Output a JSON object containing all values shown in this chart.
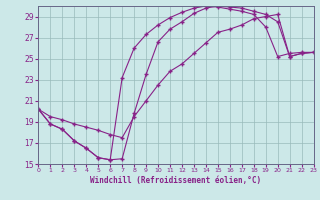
{
  "xlabel": "Windchill (Refroidissement éolien,°C)",
  "bg_color": "#cce8e8",
  "grid_color": "#99bbbb",
  "line_color": "#882288",
  "xlim_min": 0,
  "xlim_max": 23,
  "ylim_min": 15,
  "ylim_max": 30,
  "yticks": [
    15,
    17,
    19,
    21,
    23,
    25,
    27,
    29
  ],
  "xticks": [
    0,
    1,
    2,
    3,
    4,
    5,
    6,
    7,
    8,
    9,
    10,
    11,
    12,
    13,
    14,
    15,
    16,
    17,
    18,
    19,
    20,
    21,
    22,
    23
  ],
  "curve1_x": [
    0,
    1,
    2,
    3,
    4,
    5,
    6,
    7,
    8,
    9,
    10,
    11,
    12,
    13,
    14,
    15,
    16,
    17,
    18,
    19,
    20,
    21,
    22,
    23
  ],
  "curve1_y": [
    20.2,
    18.8,
    18.3,
    17.2,
    16.5,
    15.6,
    15.4,
    15.5,
    19.8,
    23.5,
    26.6,
    27.8,
    28.5,
    29.3,
    29.8,
    30.0,
    29.9,
    29.8,
    29.5,
    29.2,
    28.5,
    25.2,
    25.5,
    25.6
  ],
  "curve2_x": [
    0,
    1,
    2,
    3,
    4,
    5,
    6,
    7,
    8,
    9,
    10,
    11,
    12,
    13,
    14,
    15,
    16,
    17,
    18,
    19,
    20,
    21,
    22,
    23
  ],
  "curve2_y": [
    20.2,
    18.8,
    18.3,
    17.2,
    16.5,
    15.6,
    15.4,
    23.2,
    26.0,
    27.3,
    28.2,
    28.9,
    29.4,
    29.8,
    30.0,
    29.9,
    29.7,
    29.5,
    29.2,
    28.0,
    25.2,
    25.5,
    25.6,
    25.6
  ],
  "curve3_x": [
    0,
    1,
    2,
    3,
    4,
    5,
    6,
    7,
    8,
    9,
    10,
    11,
    12,
    13,
    14,
    15,
    16,
    17,
    18,
    19,
    20,
    21,
    22,
    23
  ],
  "curve3_y": [
    20.2,
    19.5,
    19.2,
    18.8,
    18.5,
    18.2,
    17.8,
    17.5,
    19.5,
    21.0,
    22.5,
    23.8,
    24.5,
    25.5,
    26.5,
    27.5,
    27.8,
    28.2,
    28.8,
    29.0,
    29.2,
    25.2,
    25.5,
    25.6
  ]
}
